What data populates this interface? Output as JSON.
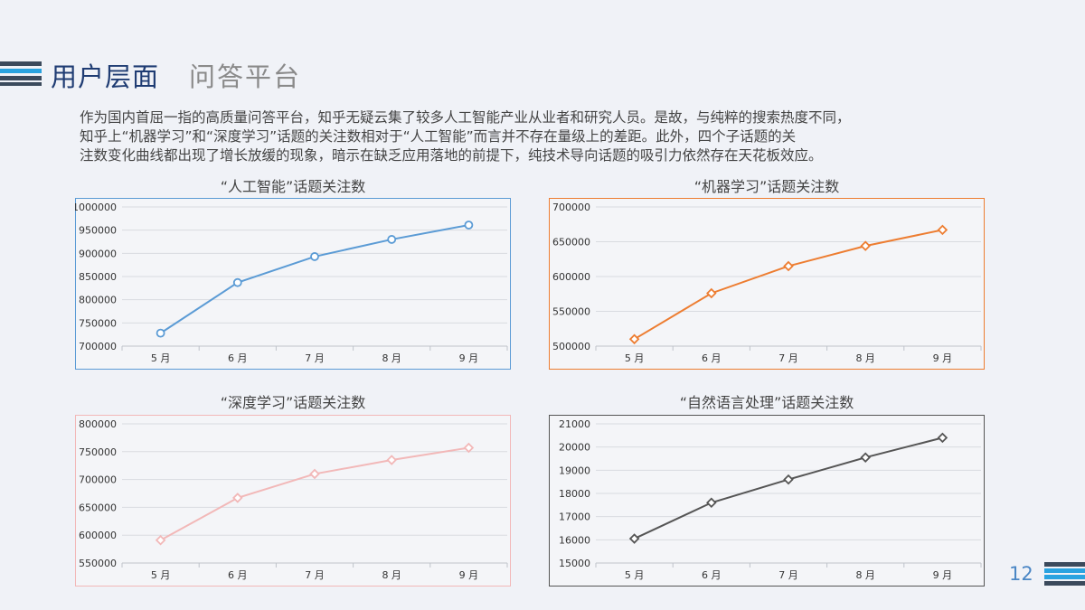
{
  "header": {
    "title": "用户层面",
    "subtitle": "问答平台"
  },
  "paragraph": [
    "作为国内首屈一指的高质量问答平台，知乎无疑云集了较多人工智能产业从业者和研究人员。是故，与纯粹的搜索热度不同，",
    "知乎上“机器学习”和“深度学习”话题的关注数相对于“人工智能”而言并不存在量级上的差距。此外，四个子话题的关",
    "注数变化曲线都出现了增长放缓的现象，暗示在缺乏应用落地的前提下，纯技术导向话题的吸引力依然存在天花板效应。"
  ],
  "page_number": "12",
  "colors": {
    "title": "#1f3c73",
    "accent_blue": "#5b9bd5",
    "deco_dark": "#3b4a5c",
    "deco_light": "#29a3e0"
  },
  "chart_data": [
    {
      "type": "line",
      "title": "“人工智能”话题关注数",
      "categories": [
        "5 月",
        "6 月",
        "7 月",
        "8 月",
        "9 月"
      ],
      "values": [
        728000,
        837000,
        893000,
        930000,
        961000
      ],
      "ylim": [
        700000,
        1000000
      ],
      "yticks": [
        "1000000",
        "950000",
        "900000",
        "850000",
        "800000",
        "750000",
        "700000"
      ],
      "marker": "circle",
      "color": "#5b9bd5",
      "grid": true
    },
    {
      "type": "line",
      "title": "“机器学习”话题关注数",
      "categories": [
        "5 月",
        "6 月",
        "7 月",
        "8 月",
        "9 月"
      ],
      "values": [
        510000,
        576000,
        615000,
        644000,
        667000
      ],
      "ylim": [
        500000,
        700000
      ],
      "yticks": [
        "700000",
        "650000",
        "600000",
        "550000",
        "500000"
      ],
      "marker": "diamond",
      "color": "#ed7d31",
      "grid": true
    },
    {
      "type": "line",
      "title": "“深度学习”话题关注数",
      "categories": [
        "5 月",
        "6 月",
        "7 月",
        "8 月",
        "9 月"
      ],
      "values": [
        591000,
        667000,
        710000,
        735000,
        757000
      ],
      "ylim": [
        550000,
        800000
      ],
      "yticks": [
        "800000",
        "750000",
        "700000",
        "650000",
        "600000",
        "550000"
      ],
      "marker": "diamond",
      "color": "#f2b8b8",
      "grid": true
    },
    {
      "type": "line",
      "title": "“自然语言处理”话题关注数",
      "categories": [
        "5 月",
        "6 月",
        "7 月",
        "8 月",
        "9 月"
      ],
      "values": [
        16050,
        17600,
        18600,
        19550,
        20400
      ],
      "ylim": [
        15000,
        21000
      ],
      "yticks": [
        "21000",
        "20000",
        "19000",
        "18000",
        "17000",
        "16000",
        "15000"
      ],
      "marker": "diamond",
      "color": "#555555",
      "grid": true
    }
  ]
}
